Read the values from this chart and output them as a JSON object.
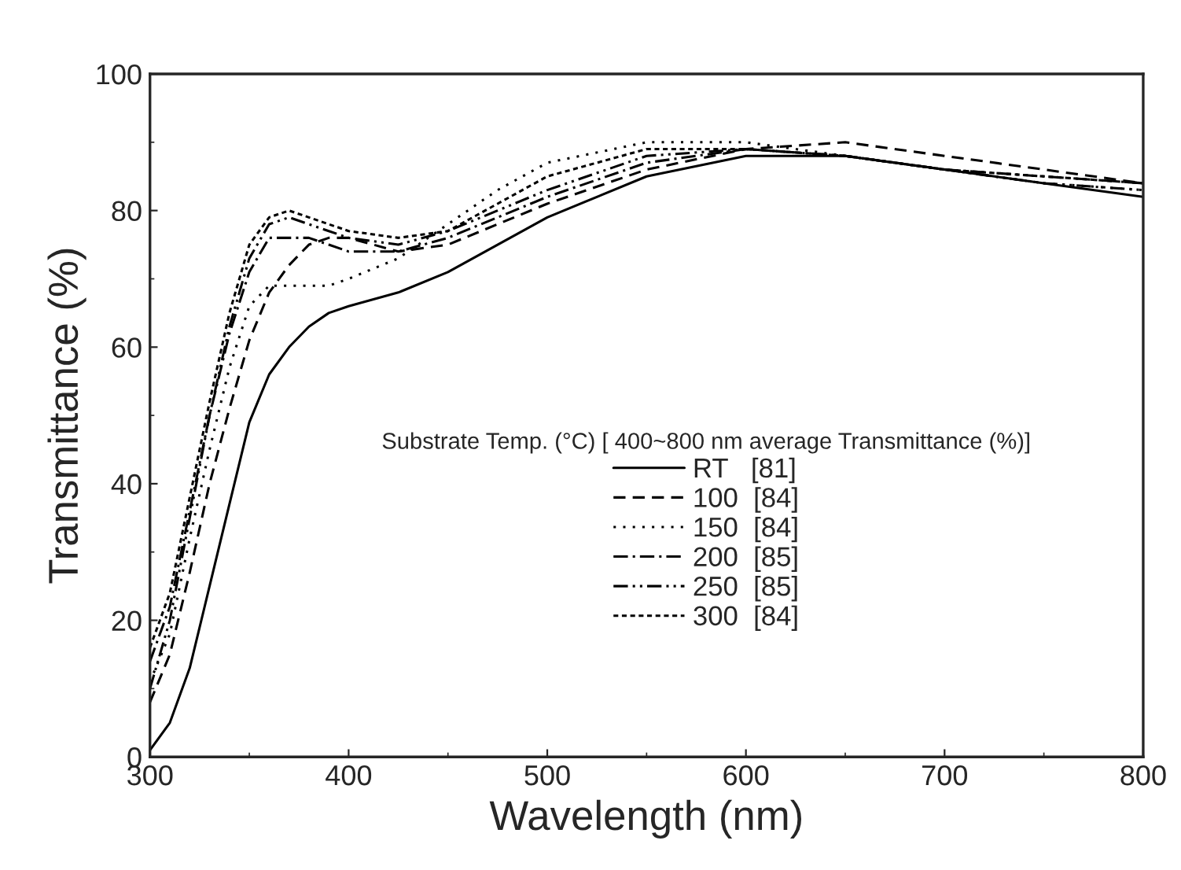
{
  "chart_data": {
    "type": "line",
    "xlabel": "Wavelength (nm)",
    "ylabel": "Transmittance (%)",
    "legend_title": "Substrate Temp. (°C) [ 400~800 nm average Transmittance (%)]",
    "x": [
      300,
      310,
      320,
      330,
      340,
      350,
      360,
      370,
      380,
      390,
      400,
      425,
      450,
      475,
      500,
      550,
      600,
      650,
      700,
      750,
      800
    ],
    "series": [
      {
        "name": "RT   [81]",
        "color": "#000000",
        "line_style": "solid",
        "values": [
          1,
          5,
          13,
          25,
          37,
          49,
          56,
          60,
          63,
          65,
          66,
          68,
          71,
          75,
          79,
          85,
          88,
          88,
          86,
          84,
          82
        ]
      },
      {
        "name": "100  [84]",
        "color": "#000000",
        "line_style": "dashed",
        "values": [
          8,
          15,
          27,
          40,
          51,
          61,
          68,
          72,
          75,
          76,
          76,
          74,
          75,
          78,
          81,
          86,
          89,
          90,
          88,
          86,
          84
        ]
      },
      {
        "name": "150  [84]",
        "color": "#000000",
        "line_style": "dotted",
        "values": [
          11,
          18,
          32,
          45,
          57,
          66,
          69,
          69,
          69,
          69,
          70,
          73,
          78,
          83,
          87,
          90,
          90,
          88,
          86,
          84,
          83
        ]
      },
      {
        "name": "200  [85]",
        "color": "#000000",
        "line_style": "dashdot",
        "values": [
          14,
          22,
          36,
          50,
          62,
          71,
          76,
          76,
          76,
          75,
          74,
          74,
          76,
          79,
          82,
          87,
          89,
          88,
          86,
          85,
          84
        ]
      },
      {
        "name": "250  [85]",
        "color": "#000000",
        "line_style": "dashdotdot",
        "values": [
          10,
          20,
          35,
          50,
          63,
          73,
          78,
          79,
          78,
          77,
          76,
          75,
          77,
          80,
          83,
          88,
          89,
          88,
          86,
          84,
          83
        ]
      },
      {
        "name": "300  [84]",
        "color": "#000000",
        "line_style": "shortdash",
        "values": [
          16,
          24,
          38,
          52,
          65,
          75,
          79,
          80,
          79,
          78,
          77,
          76,
          77,
          81,
          85,
          89,
          89,
          88,
          86,
          85,
          84
        ]
      }
    ],
    "xlim": [
      300,
      800
    ],
    "xticks": [
      300,
      400,
      500,
      600,
      700,
      800
    ],
    "ylim": [
      0,
      100
    ],
    "yticks": [
      0,
      20,
      40,
      60,
      80,
      100
    ],
    "grid": false,
    "legend": "center"
  }
}
